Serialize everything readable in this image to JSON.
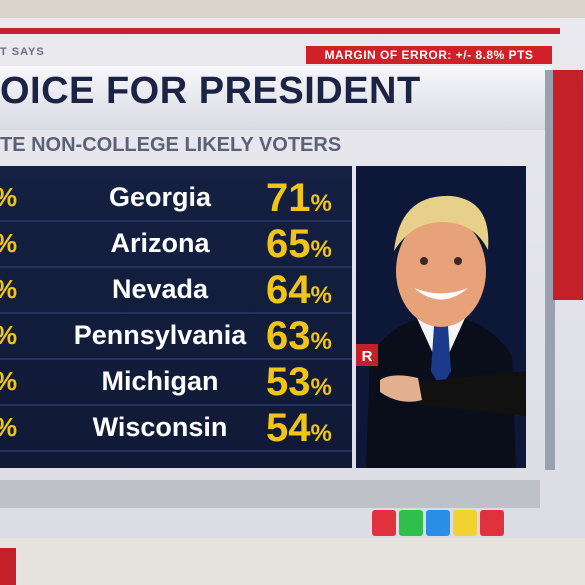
{
  "header": {
    "source": "T SAYS",
    "margin_of_error": "MARGIN OF ERROR: +/- 8.8% PTS",
    "title": "OICE FOR PRESIDENT",
    "subtitle": "TE NON-COLLEGE LIKELY VOTERS"
  },
  "rows": [
    {
      "state": "Georgia",
      "left_fragment": "%",
      "value": "71",
      "pct": "%"
    },
    {
      "state": "Arizona",
      "left_fragment": "%",
      "value": "65",
      "pct": "%"
    },
    {
      "state": "Nevada",
      "left_fragment": "%",
      "value": "64",
      "pct": "%"
    },
    {
      "state": "Pennsylvania",
      "left_fragment": "%",
      "value": "63",
      "pct": "%"
    },
    {
      "state": "Michigan",
      "left_fragment": "%",
      "value": "53",
      "pct": "%"
    },
    {
      "state": "Wisconsin",
      "left_fragment": "%",
      "value": "54",
      "pct": "%"
    }
  ],
  "candidate": {
    "party_badge": "R"
  },
  "colors": {
    "accent_red": "#d0202a",
    "panel_navy": "#152042",
    "value_yellow": "#f0c419",
    "button_colors": [
      "#e0323c",
      "#2fbf4a",
      "#2a8ee8",
      "#f2d230",
      "#e0323c"
    ]
  }
}
